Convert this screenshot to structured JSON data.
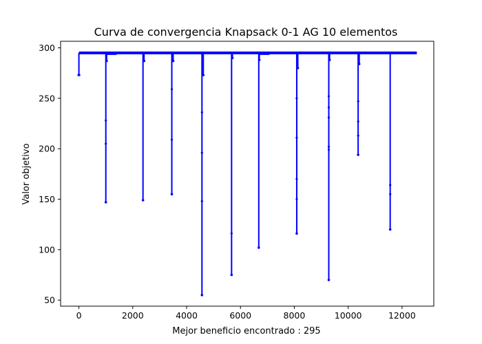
{
  "chart_data": {
    "type": "line",
    "title": "Curva de convergencia Knapsack 0-1 AG 10 elementos",
    "xlabel": "Mejor beneficio encontrado : 295",
    "ylabel": "Valor objetivo",
    "xlim": [
      -680,
      13180
    ],
    "ylim": [
      44,
      306.5
    ],
    "xticks": [
      0,
      2000,
      4000,
      6000,
      8000,
      10000,
      12000
    ],
    "yticks": [
      50,
      100,
      150,
      200,
      250,
      300
    ],
    "grid": false,
    "series_color": "#0000ff",
    "baseline_value": 295,
    "plateau_value": 294,
    "x_start": 0,
    "x_end": 12550,
    "initial_segment": {
      "x_from": 0,
      "x_to": 50,
      "y_low": 273,
      "y_high": 295
    },
    "plateaus": [
      {
        "x_from": 1040,
        "x_to": 1400
      },
      {
        "x_from": 6680,
        "x_to": 7080
      }
    ],
    "spikes": [
      {
        "x": 1000,
        "min": 147,
        "points": [
          228,
          205
        ]
      },
      {
        "x": 1030,
        "min": 287,
        "points": []
      },
      {
        "x": 2380,
        "min": 149,
        "points": []
      },
      {
        "x": 2420,
        "min": 287,
        "points": []
      },
      {
        "x": 3450,
        "min": 155,
        "points": [
          259,
          209
        ]
      },
      {
        "x": 3500,
        "min": 287,
        "points": []
      },
      {
        "x": 4570,
        "min": 55,
        "points": [
          236,
          196,
          148
        ]
      },
      {
        "x": 4620,
        "min": 273,
        "points": []
      },
      {
        "x": 5670,
        "min": 75,
        "points": [
          116
        ]
      },
      {
        "x": 5700,
        "min": 290,
        "points": []
      },
      {
        "x": 6680,
        "min": 102,
        "points": []
      },
      {
        "x": 6700,
        "min": 288,
        "points": []
      },
      {
        "x": 8090,
        "min": 116,
        "points": [
          250,
          211,
          170,
          150
        ]
      },
      {
        "x": 8130,
        "min": 280,
        "points": []
      },
      {
        "x": 9280,
        "min": 70,
        "points": [
          252,
          241,
          231,
          202,
          199
        ]
      },
      {
        "x": 9310,
        "min": 288,
        "points": []
      },
      {
        "x": 10370,
        "min": 194,
        "points": [
          247,
          227,
          213
        ]
      },
      {
        "x": 10410,
        "min": 284,
        "points": []
      },
      {
        "x": 11560,
        "min": 120,
        "points": [
          164,
          155
        ]
      }
    ]
  }
}
